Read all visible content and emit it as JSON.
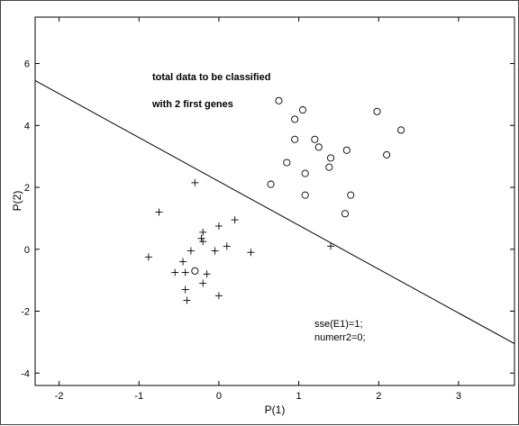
{
  "chart_data": {
    "type": "scatter",
    "title_lines": [
      "total data to be classified",
      "with 2 first genes"
    ],
    "xlabel": "P(1)",
    "ylabel": "P(2)",
    "xlim": [
      -2.3,
      3.7
    ],
    "ylim": [
      -4.4,
      7.5
    ],
    "xticks": [
      -2,
      -1,
      0,
      1,
      2,
      3
    ],
    "yticks": [
      -4,
      -2,
      0,
      2,
      4,
      6
    ],
    "grid": false,
    "annotations": [
      "sse(E1)=1;",
      "numerr2=0;"
    ],
    "decision_line": {
      "x": [
        -2.3,
        3.7
      ],
      "y": [
        5.45,
        -3.05
      ]
    },
    "series": [
      {
        "marker": "circle",
        "points": [
          [
            0.75,
            4.8
          ],
          [
            1.05,
            4.5
          ],
          [
            0.95,
            4.2
          ],
          [
            1.98,
            4.45
          ],
          [
            2.28,
            3.85
          ],
          [
            0.95,
            3.55
          ],
          [
            1.2,
            3.55
          ],
          [
            1.25,
            3.3
          ],
          [
            1.6,
            3.2
          ],
          [
            1.4,
            2.95
          ],
          [
            2.1,
            3.05
          ],
          [
            0.85,
            2.8
          ],
          [
            1.38,
            2.65
          ],
          [
            1.08,
            2.45
          ],
          [
            0.65,
            2.1
          ],
          [
            1.08,
            1.75
          ],
          [
            1.65,
            1.75
          ],
          [
            1.58,
            1.15
          ],
          [
            -0.3,
            -0.7
          ]
        ]
      },
      {
        "marker": "plus",
        "points": [
          [
            -0.3,
            2.15
          ],
          [
            -0.75,
            1.2
          ],
          [
            0.2,
            0.95
          ],
          [
            0.0,
            0.75
          ],
          [
            -0.2,
            0.55
          ],
          [
            -0.22,
            0.35
          ],
          [
            -0.2,
            0.25
          ],
          [
            0.1,
            0.1
          ],
          [
            -0.35,
            -0.05
          ],
          [
            -0.05,
            -0.05
          ],
          [
            0.4,
            -0.1
          ],
          [
            -0.88,
            -0.25
          ],
          [
            -0.45,
            -0.4
          ],
          [
            -0.55,
            -0.75
          ],
          [
            -0.42,
            -0.75
          ],
          [
            -0.15,
            -0.8
          ],
          [
            -0.2,
            -1.1
          ],
          [
            -0.42,
            -1.3
          ],
          [
            0.0,
            -1.5
          ],
          [
            -0.4,
            -1.65
          ],
          [
            1.4,
            0.1
          ]
        ]
      }
    ]
  }
}
